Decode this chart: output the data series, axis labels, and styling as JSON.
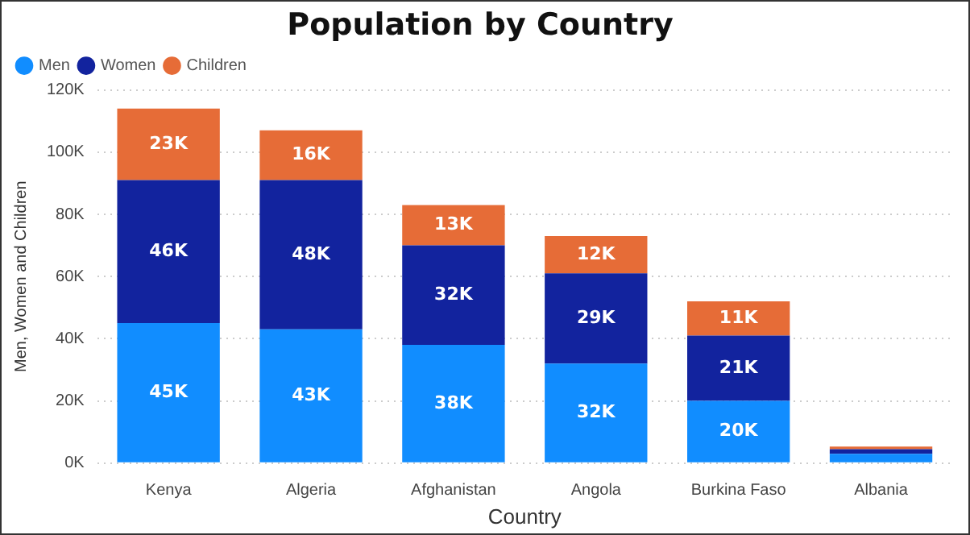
{
  "chart_data": {
    "type": "bar",
    "title": "Population by Country",
    "xlabel": "Country",
    "ylabel": "Men, Women and Children",
    "stacked": true,
    "categories": [
      "Kenya",
      "Algeria",
      "Afghanistan",
      "Angola",
      "Burkina Faso",
      "Albania"
    ],
    "series": [
      {
        "name": "Men",
        "color": "#118dff",
        "values": [
          45,
          43,
          38,
          32,
          20,
          3
        ],
        "value_labels": [
          "45K",
          "43K",
          "38K",
          "32K",
          "20K",
          null
        ]
      },
      {
        "name": "Women",
        "color": "#12239e",
        "values": [
          46,
          48,
          32,
          29,
          21,
          1.5
        ],
        "value_labels": [
          "46K",
          "48K",
          "32K",
          "29K",
          "21K",
          null
        ]
      },
      {
        "name": "Children",
        "color": "#e66c37",
        "values": [
          23,
          16,
          13,
          12,
          11,
          0.8
        ],
        "value_labels": [
          "23K",
          "16K",
          "13K",
          "12K",
          "11K",
          null
        ]
      }
    ],
    "ylim": [
      0,
      120
    ],
    "yticks": [
      {
        "value": 0,
        "label": "0K"
      },
      {
        "value": 20,
        "label": "20K"
      },
      {
        "value": 40,
        "label": "40K"
      },
      {
        "value": 60,
        "label": "60K"
      },
      {
        "value": 80,
        "label": "80K"
      },
      {
        "value": 100,
        "label": "100K"
      },
      {
        "value": 120,
        "label": "120K"
      }
    ],
    "grid": "y",
    "legend": "top left"
  }
}
